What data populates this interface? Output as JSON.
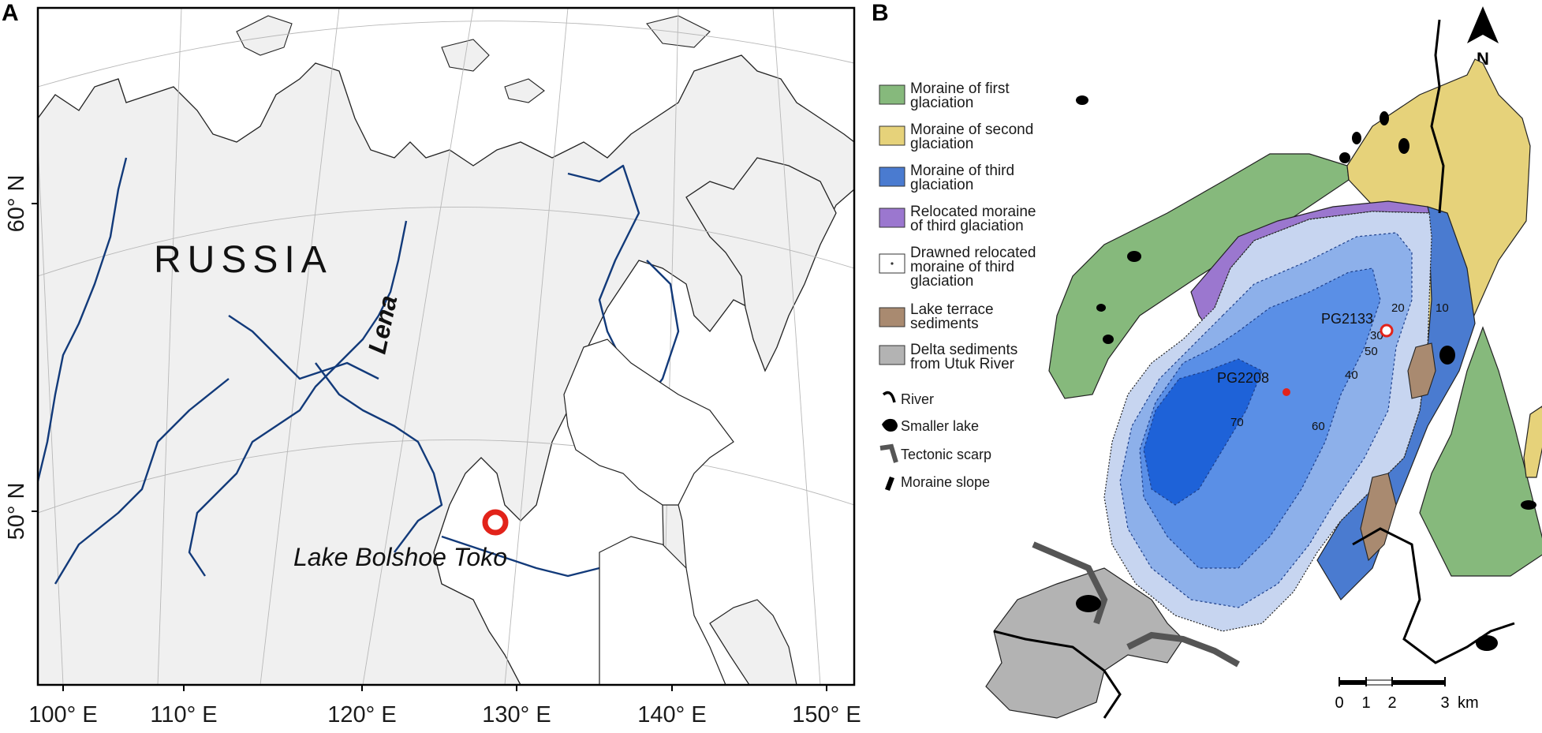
{
  "panel_a": {
    "letter": "A",
    "country_label": "RUSSIA",
    "river_label": "Lena",
    "lake_label": "Lake Bolshoe Toko",
    "lat_labels": [
      "60° N",
      "50° N"
    ],
    "lon_labels": [
      "100° E",
      "110° E",
      "120° E",
      "130° E",
      "140° E",
      "150° E"
    ]
  },
  "panel_b": {
    "letter": "B",
    "north_label": "N",
    "legend": [
      {
        "label": [
          "Moraine of first",
          "glaciation"
        ],
        "color": "#86b97c"
      },
      {
        "label": [
          "Moraine of second",
          "glaciation"
        ],
        "color": "#e6d27a"
      },
      {
        "label": [
          "Moraine of third",
          "glaciation"
        ],
        "color": "#4a7bd0"
      },
      {
        "label": [
          "Relocated moraine",
          "of third glaciation"
        ],
        "color": "#9b77cf"
      },
      {
        "label": [
          "Drawned relocated",
          "moraine of third",
          "glaciation"
        ],
        "color": "#ffffff"
      },
      {
        "label": [
          "Lake terrace",
          "sediments"
        ],
        "color": "#a98a70"
      },
      {
        "label": [
          "Delta sediments",
          "from Utuk River"
        ],
        "color": "#b3b3b3"
      }
    ],
    "line_legend": [
      {
        "label": "River",
        "icon": "river-icon"
      },
      {
        "label": "Smaller lake",
        "icon": "lake-icon"
      },
      {
        "label": "Tectonic scarp",
        "icon": "scarp-icon"
      },
      {
        "label": "Moraine slope",
        "icon": "slope-icon"
      }
    ],
    "cores": [
      "PG2133",
      "PG2208"
    ],
    "depth_labels": [
      "10",
      "20",
      "30",
      "40",
      "50",
      "60",
      "70"
    ],
    "scale_ticks": [
      "0",
      "1",
      "2",
      "3"
    ],
    "scale_unit": "km"
  },
  "colors": {
    "land": "#f0f0f0",
    "river_blue": "#123a7a",
    "marker_red": "#e2231a",
    "lake_deep": "#0b4fc9",
    "lake_shallow": "#c7d5f0"
  }
}
